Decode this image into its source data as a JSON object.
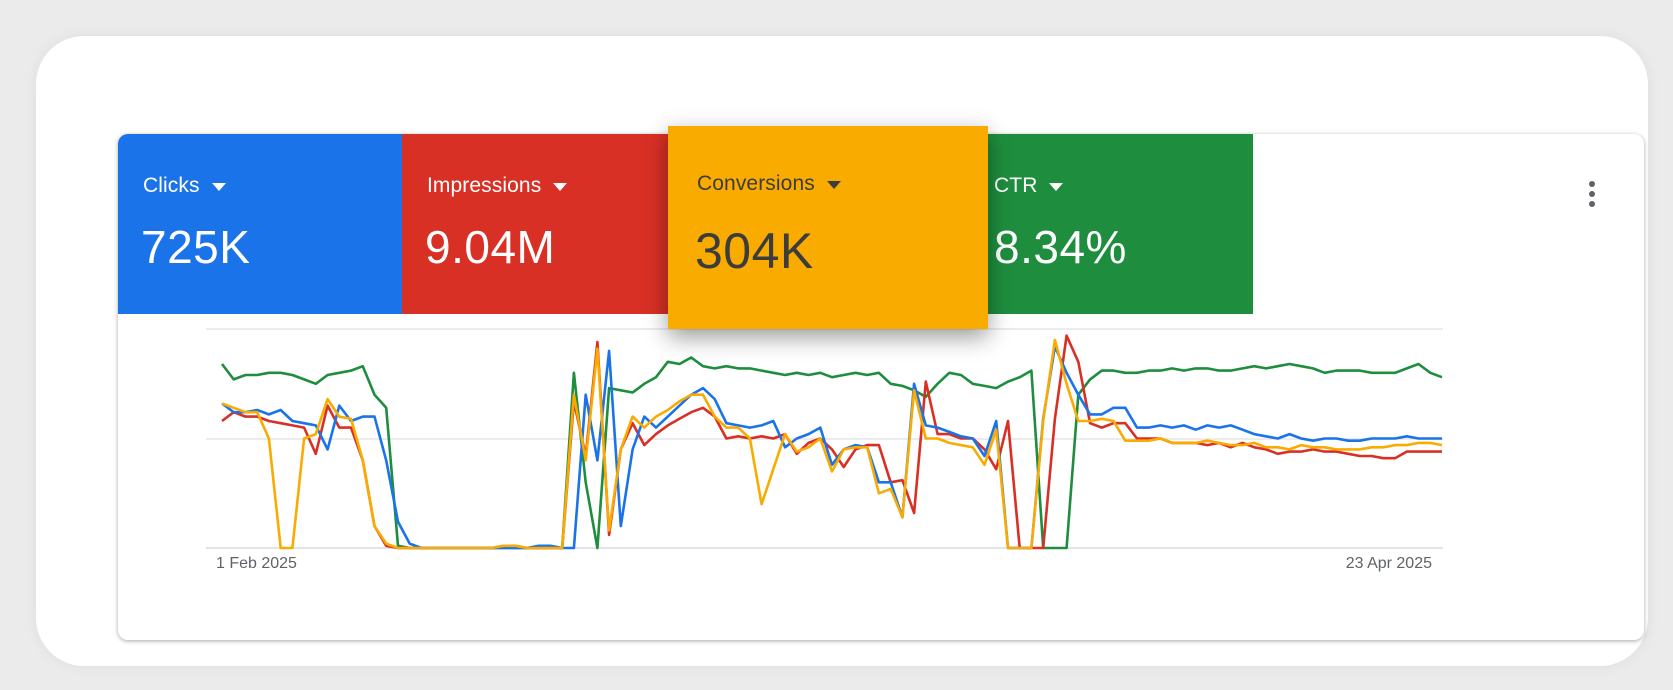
{
  "metrics": {
    "clicks": {
      "label": "Clicks",
      "value": "725K",
      "color": "#1a73e8"
    },
    "impressions": {
      "label": "Impressions",
      "value": "9.04M",
      "color": "#d93025"
    },
    "conversions": {
      "label": "Conversions",
      "value": "304K",
      "color": "#f9ab00"
    },
    "ctr": {
      "label": "CTR",
      "value": "8.34%",
      "color": "#1e8e3e"
    }
  },
  "icons": {
    "more": "more-vert-icon",
    "dropdown": "arrow-drop-down-icon"
  },
  "chart_data": {
    "type": "line",
    "title": "",
    "xlabel": "",
    "ylabel": "",
    "x_start_label": "1 Feb 2025",
    "x_end_label": "23 Apr 2025",
    "ylim": [
      0,
      100
    ],
    "grid": true,
    "legend": "tiles-top",
    "series": [
      {
        "name": "Clicks",
        "color": "#1a73e8",
        "values": [
          66,
          62,
          62,
          63,
          61,
          63,
          58,
          57,
          56,
          45,
          65,
          58,
          60,
          60,
          40,
          12,
          2,
          0,
          0,
          0,
          0,
          0,
          0,
          0,
          0,
          0,
          0,
          1,
          1,
          0,
          0,
          70,
          40,
          90,
          10,
          45,
          60,
          55,
          60,
          65,
          70,
          73,
          68,
          57,
          56,
          55,
          56,
          58,
          46,
          50,
          52,
          55,
          38,
          45,
          47,
          46,
          30,
          30,
          14,
          75,
          56,
          55,
          53,
          51,
          50,
          42,
          58,
          0,
          0,
          0,
          59,
          92,
          80,
          70,
          61,
          61,
          64,
          64,
          55,
          55,
          56,
          55,
          56,
          54,
          56,
          55,
          56,
          54,
          52,
          51,
          50,
          52,
          50,
          49,
          50,
          50,
          49,
          49,
          50,
          50,
          50,
          51,
          50,
          50,
          50
        ]
      },
      {
        "name": "Impressions",
        "color": "#d93025",
        "values": [
          58,
          62,
          60,
          60,
          58,
          57,
          56,
          55,
          43,
          65,
          55,
          55,
          40,
          10,
          1,
          0,
          0,
          0,
          0,
          0,
          0,
          0,
          0,
          0,
          1,
          1,
          0,
          0,
          0,
          0,
          67,
          42,
          94,
          6,
          45,
          57,
          47,
          52,
          56,
          59,
          62,
          64,
          60,
          50,
          51,
          50,
          51,
          50,
          52,
          43,
          48,
          50,
          45,
          37,
          45,
          47,
          47,
          30,
          31,
          16,
          76,
          52,
          52,
          50,
          50,
          45,
          36,
          58,
          0,
          0,
          0,
          59,
          97,
          85,
          57,
          55,
          57,
          57,
          50,
          50,
          50,
          48,
          48,
          48,
          47,
          48,
          46,
          48,
          46,
          45,
          43,
          44,
          44,
          45,
          44,
          44,
          43,
          42,
          42,
          41,
          41,
          44,
          44,
          44,
          44
        ]
      },
      {
        "name": "Conversions",
        "color": "#f9ab00",
        "values": [
          66,
          64,
          62,
          62,
          50,
          0,
          0,
          50,
          52,
          68,
          60,
          59,
          40,
          10,
          2,
          0,
          0,
          0,
          0,
          0,
          0,
          0,
          0,
          0,
          1,
          1,
          0,
          0,
          0,
          0,
          70,
          40,
          91,
          8,
          45,
          60,
          55,
          60,
          63,
          67,
          70,
          70,
          60,
          55,
          55,
          50,
          20,
          36,
          52,
          44,
          46,
          50,
          35,
          45,
          46,
          46,
          25,
          27,
          14,
          72,
          50,
          50,
          48,
          47,
          46,
          38,
          54,
          0,
          0,
          0,
          58,
          95,
          75,
          58,
          58,
          59,
          58,
          49,
          49,
          49,
          50,
          48,
          48,
          48,
          49,
          48,
          47,
          47,
          48,
          46,
          46,
          45,
          47,
          46,
          46,
          45,
          45,
          45,
          46,
          46,
          47,
          47,
          48,
          48,
          47
        ]
      },
      {
        "name": "CTR",
        "color": "#1e8e3e",
        "values": [
          84,
          77,
          79,
          79,
          80,
          80,
          79,
          77,
          75,
          79,
          80,
          81,
          83,
          70,
          64,
          1,
          0,
          0,
          0,
          0,
          0,
          0,
          0,
          0,
          0,
          0,
          0,
          0,
          0,
          0,
          80,
          30,
          0,
          73,
          72,
          71,
          75,
          78,
          85,
          84,
          87,
          83,
          82,
          83,
          82,
          82,
          81,
          80,
          79,
          80,
          79,
          80,
          78,
          79,
          80,
          79,
          80,
          75,
          74,
          72,
          69,
          75,
          80,
          79,
          75,
          74,
          73,
          76,
          78,
          81,
          0,
          0,
          0,
          70,
          77,
          81,
          81,
          80,
          80,
          81,
          81,
          82,
          81,
          82,
          82,
          81,
          81,
          82,
          83,
          82,
          83,
          84,
          83,
          82,
          80,
          81,
          81,
          81,
          80,
          80,
          80,
          82,
          84,
          80,
          78
        ]
      }
    ]
  }
}
